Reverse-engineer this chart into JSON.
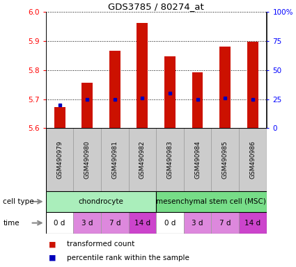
{
  "title": "GDS3785 / 80274_at",
  "samples": [
    "GSM490979",
    "GSM490980",
    "GSM490981",
    "GSM490982",
    "GSM490983",
    "GSM490984",
    "GSM490985",
    "GSM490986"
  ],
  "transformed_counts": [
    5.672,
    5.757,
    5.867,
    5.962,
    5.847,
    5.793,
    5.882,
    5.897
  ],
  "percentile_ranks": [
    20,
    25,
    25,
    26,
    30,
    25,
    26,
    25
  ],
  "ylim_left": [
    5.6,
    6.0
  ],
  "ylim_right": [
    0,
    100
  ],
  "yticks_left": [
    5.6,
    5.7,
    5.8,
    5.9,
    6.0
  ],
  "yticks_right": [
    0,
    25,
    50,
    75,
    100
  ],
  "ytick_labels_right": [
    "0",
    "25",
    "50",
    "75",
    "100%"
  ],
  "bar_color": "#cc1100",
  "dot_color": "#0000bb",
  "bar_width": 0.4,
  "cell_types": [
    {
      "label": "chondrocyte",
      "start": 0,
      "end": 4,
      "color": "#aaeebb"
    },
    {
      "label": "mesenchymal stem cell (MSC)",
      "start": 4,
      "end": 8,
      "color": "#77dd88"
    }
  ],
  "times": [
    "0 d",
    "3 d",
    "7 d",
    "14 d",
    "0 d",
    "3 d",
    "7 d",
    "14 d"
  ],
  "time_colors": [
    "#ffffff",
    "#dd88dd",
    "#dd88dd",
    "#cc44cc",
    "#ffffff",
    "#dd88dd",
    "#dd88dd",
    "#cc44cc"
  ],
  "sample_bg_color": "#cccccc",
  "cell_type_label": "cell type",
  "time_label": "time",
  "legend_bar_label": "transformed count",
  "legend_dot_label": "percentile rank within the sample",
  "background_color": "#ffffff",
  "arrow_color": "#888888"
}
